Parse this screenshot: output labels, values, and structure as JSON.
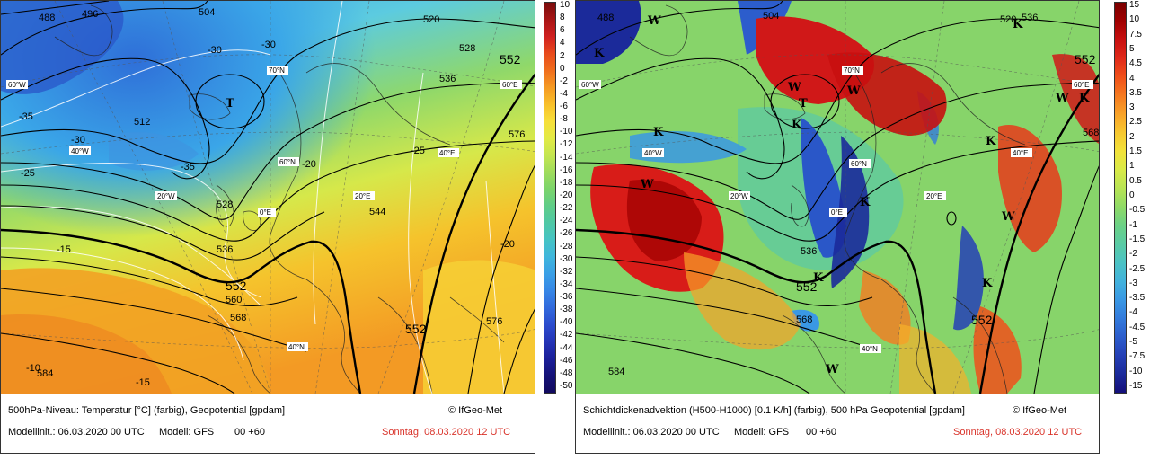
{
  "left_panel": {
    "caption_title": "500hPa-Niveau: Temperatur [°C] (farbig), Geopotential [gpdam]",
    "copyright": "© IfGeo-Met",
    "model_init": "Modellinit.: 06.03.2020 00 UTC",
    "model": "Modell: GFS",
    "lead": "00 +60",
    "valid": "Sonntag, 08.03.2020 12 UTC",
    "colorbar_ticks": [
      "10",
      "8",
      "6",
      "4",
      "2",
      "0",
      "-2",
      "-4",
      "-6",
      "-8",
      "-10",
      "-12",
      "-14",
      "-16",
      "-18",
      "-20",
      "-22",
      "-24",
      "-26",
      "-28",
      "-30",
      "-32",
      "-34",
      "-36",
      "-38",
      "-40",
      "-42",
      "-44",
      "-46",
      "-48",
      "-50"
    ],
    "height_labels": [
      "488",
      "496",
      "504",
      "512",
      "520",
      "528",
      "536",
      "544",
      "552",
      "560",
      "568",
      "576",
      "584"
    ],
    "temp_labels": [
      "-30",
      "-35",
      "-25",
      "-20",
      "-15",
      "-10"
    ],
    "low_marker": "T",
    "lat_labels": [
      "70°N",
      "60°N",
      "40°N",
      "60°W",
      "40°W",
      "20°W",
      "0°E",
      "20°E",
      "40°E",
      "60°E"
    ]
  },
  "right_panel": {
    "caption_title": "Schichtdickenadvektion (H500-H1000) [0.1 K/h] (farbig), 500 hPa Geopotential [gpdam]",
    "copyright": "© IfGeo-Met",
    "model_init": "Modellinit.: 06.03.2020 00 UTC",
    "model": "Modell: GFS",
    "lead": "00 +60",
    "valid": "Sonntag, 08.03.2020 12 UTC",
    "colorbar_ticks": [
      "15",
      "10",
      "7.5",
      "5",
      "4.5",
      "4",
      "3.5",
      "3",
      "2.5",
      "2",
      "1.5",
      "1",
      "0.5",
      "0",
      "-0.5",
      "-1",
      "-1.5",
      "-2",
      "-2.5",
      "-3",
      "-3.5",
      "-4",
      "-4.5",
      "-5",
      "-7.5",
      "-10",
      "-15"
    ],
    "height_labels": [
      "488",
      "504",
      "520",
      "536",
      "552",
      "568",
      "584"
    ],
    "warm_marker": "W",
    "cold_marker": "K",
    "low_marker": "T",
    "lat_labels": [
      "70°N",
      "60°N",
      "40°N",
      "60°W",
      "40°W",
      "20°W",
      "0°E",
      "20°E",
      "40°E",
      "60°E"
    ]
  },
  "colors": {
    "left_colorbar": [
      "#7a0d0d",
      "#a81515",
      "#d02020",
      "#e84a1c",
      "#f06e1c",
      "#f59a22",
      "#f8c02a",
      "#f7df3a",
      "#e2ea45",
      "#c4e650",
      "#9fdc5c",
      "#7bd46b",
      "#5fcd88",
      "#4fc8a6",
      "#45c3c4",
      "#3fb6dc",
      "#3a9fe6",
      "#3686e6",
      "#3169dc",
      "#2b4ccd",
      "#2434b6",
      "#1b1f99",
      "#151277",
      "#120a5e"
    ],
    "right_colorbar": [
      "#7a0000",
      "#a00000",
      "#c81010",
      "#e02a1a",
      "#f0501a",
      "#f57a20",
      "#f8a228",
      "#f7c830",
      "#f2e23a",
      "#d9ea48",
      "#b8e454",
      "#8fda66",
      "#6bd186",
      "#5acba4",
      "#4cc3c4",
      "#42b2dc",
      "#3a98e4",
      "#337bdc",
      "#2c5dcc",
      "#2540b6",
      "#1b2a9a",
      "#140f7a"
    ]
  }
}
